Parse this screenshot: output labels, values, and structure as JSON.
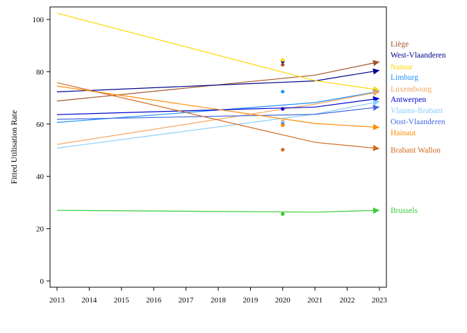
{
  "chart_data": {
    "type": "line",
    "xlabel": "",
    "ylabel": "Fitted Utilisation Rate",
    "xlim": [
      2013,
      2023
    ],
    "ylim": [
      -3,
      105
    ],
    "x_ticks": [
      "2013",
      "2014",
      "2015",
      "2016",
      "2017",
      "2018",
      "2019",
      "2020",
      "2021",
      "2022",
      "2023"
    ],
    "y_ticks": [
      "0",
      "20",
      "40",
      "60",
      "80",
      "100"
    ],
    "grid": false,
    "legend": "right (labels at line ends)",
    "series": [
      {
        "name": "Liège",
        "color": "#a0522d",
        "x": [
          2013,
          2021,
          2023
        ],
        "y": [
          68.8,
          78.7,
          83.8
        ],
        "point": {
          "x": 2020,
          "y": 82.7
        }
      },
      {
        "name": "West-Vlaanderen",
        "color": "#00008b",
        "x": [
          2013,
          2021,
          2023
        ],
        "y": [
          72.3,
          76.5,
          80.5
        ],
        "point": {
          "x": 2020,
          "y": 84.0
        }
      },
      {
        "name": "Namur",
        "color": "#ffd700",
        "x": [
          2013,
          2021,
          2023
        ],
        "y": [
          102.4,
          76.6,
          73.0
        ],
        "point": {
          "x": 2020,
          "y": 84.5
        }
      },
      {
        "name": "Limburg",
        "color": "#1e90ff",
        "x": [
          2013,
          2021,
          2023
        ],
        "y": [
          60.6,
          68.2,
          72.5
        ],
        "point": {
          "x": 2020,
          "y": 72.4
        }
      },
      {
        "name": "Luxembourg",
        "color": "#f4a460",
        "x": [
          2013,
          2021,
          2023
        ],
        "y": [
          52.2,
          67.6,
          72.3
        ],
        "point": {
          "x": 2020,
          "y": 61.0
        }
      },
      {
        "name": "Antwerpen",
        "color": "#0000cd",
        "x": [
          2013,
          2021,
          2023
        ],
        "y": [
          63.6,
          66.5,
          69.8
        ],
        "point": {
          "x": 2020,
          "y": 65.8
        }
      },
      {
        "name": "Vlaams-Brabant",
        "color": "#87cefa",
        "x": [
          2013,
          2021,
          2023
        ],
        "y": [
          50.8,
          63.8,
          68.6
        ],
        "point": {
          "x": 2020,
          "y": 60.6
        }
      },
      {
        "name": "Oost-Vlaanderen",
        "color": "#4169e1",
        "x": [
          2013,
          2021,
          2023
        ],
        "y": [
          61.8,
          63.7,
          66.5
        ],
        "point": {
          "x": 2020,
          "y": 59.9
        }
      },
      {
        "name": "Hainaut",
        "color": "#ff8c00",
        "x": [
          2013,
          2021,
          2023
        ],
        "y": [
          74.5,
          60.2,
          58.7
        ],
        "point": {
          "x": 2020,
          "y": 59.5
        }
      },
      {
        "name": "Brabant Wallon",
        "color": "#d2691e",
        "x": [
          2013,
          2021,
          2023
        ],
        "y": [
          75.8,
          53.0,
          50.6
        ],
        "point": {
          "x": 2020,
          "y": 50.2
        }
      },
      {
        "name": "Brussels",
        "color": "#32cd32",
        "x": [
          2013,
          2021,
          2023
        ],
        "y": [
          27.0,
          26.3,
          27.0
        ],
        "point": {
          "x": 2020,
          "y": 25.6
        }
      }
    ]
  }
}
